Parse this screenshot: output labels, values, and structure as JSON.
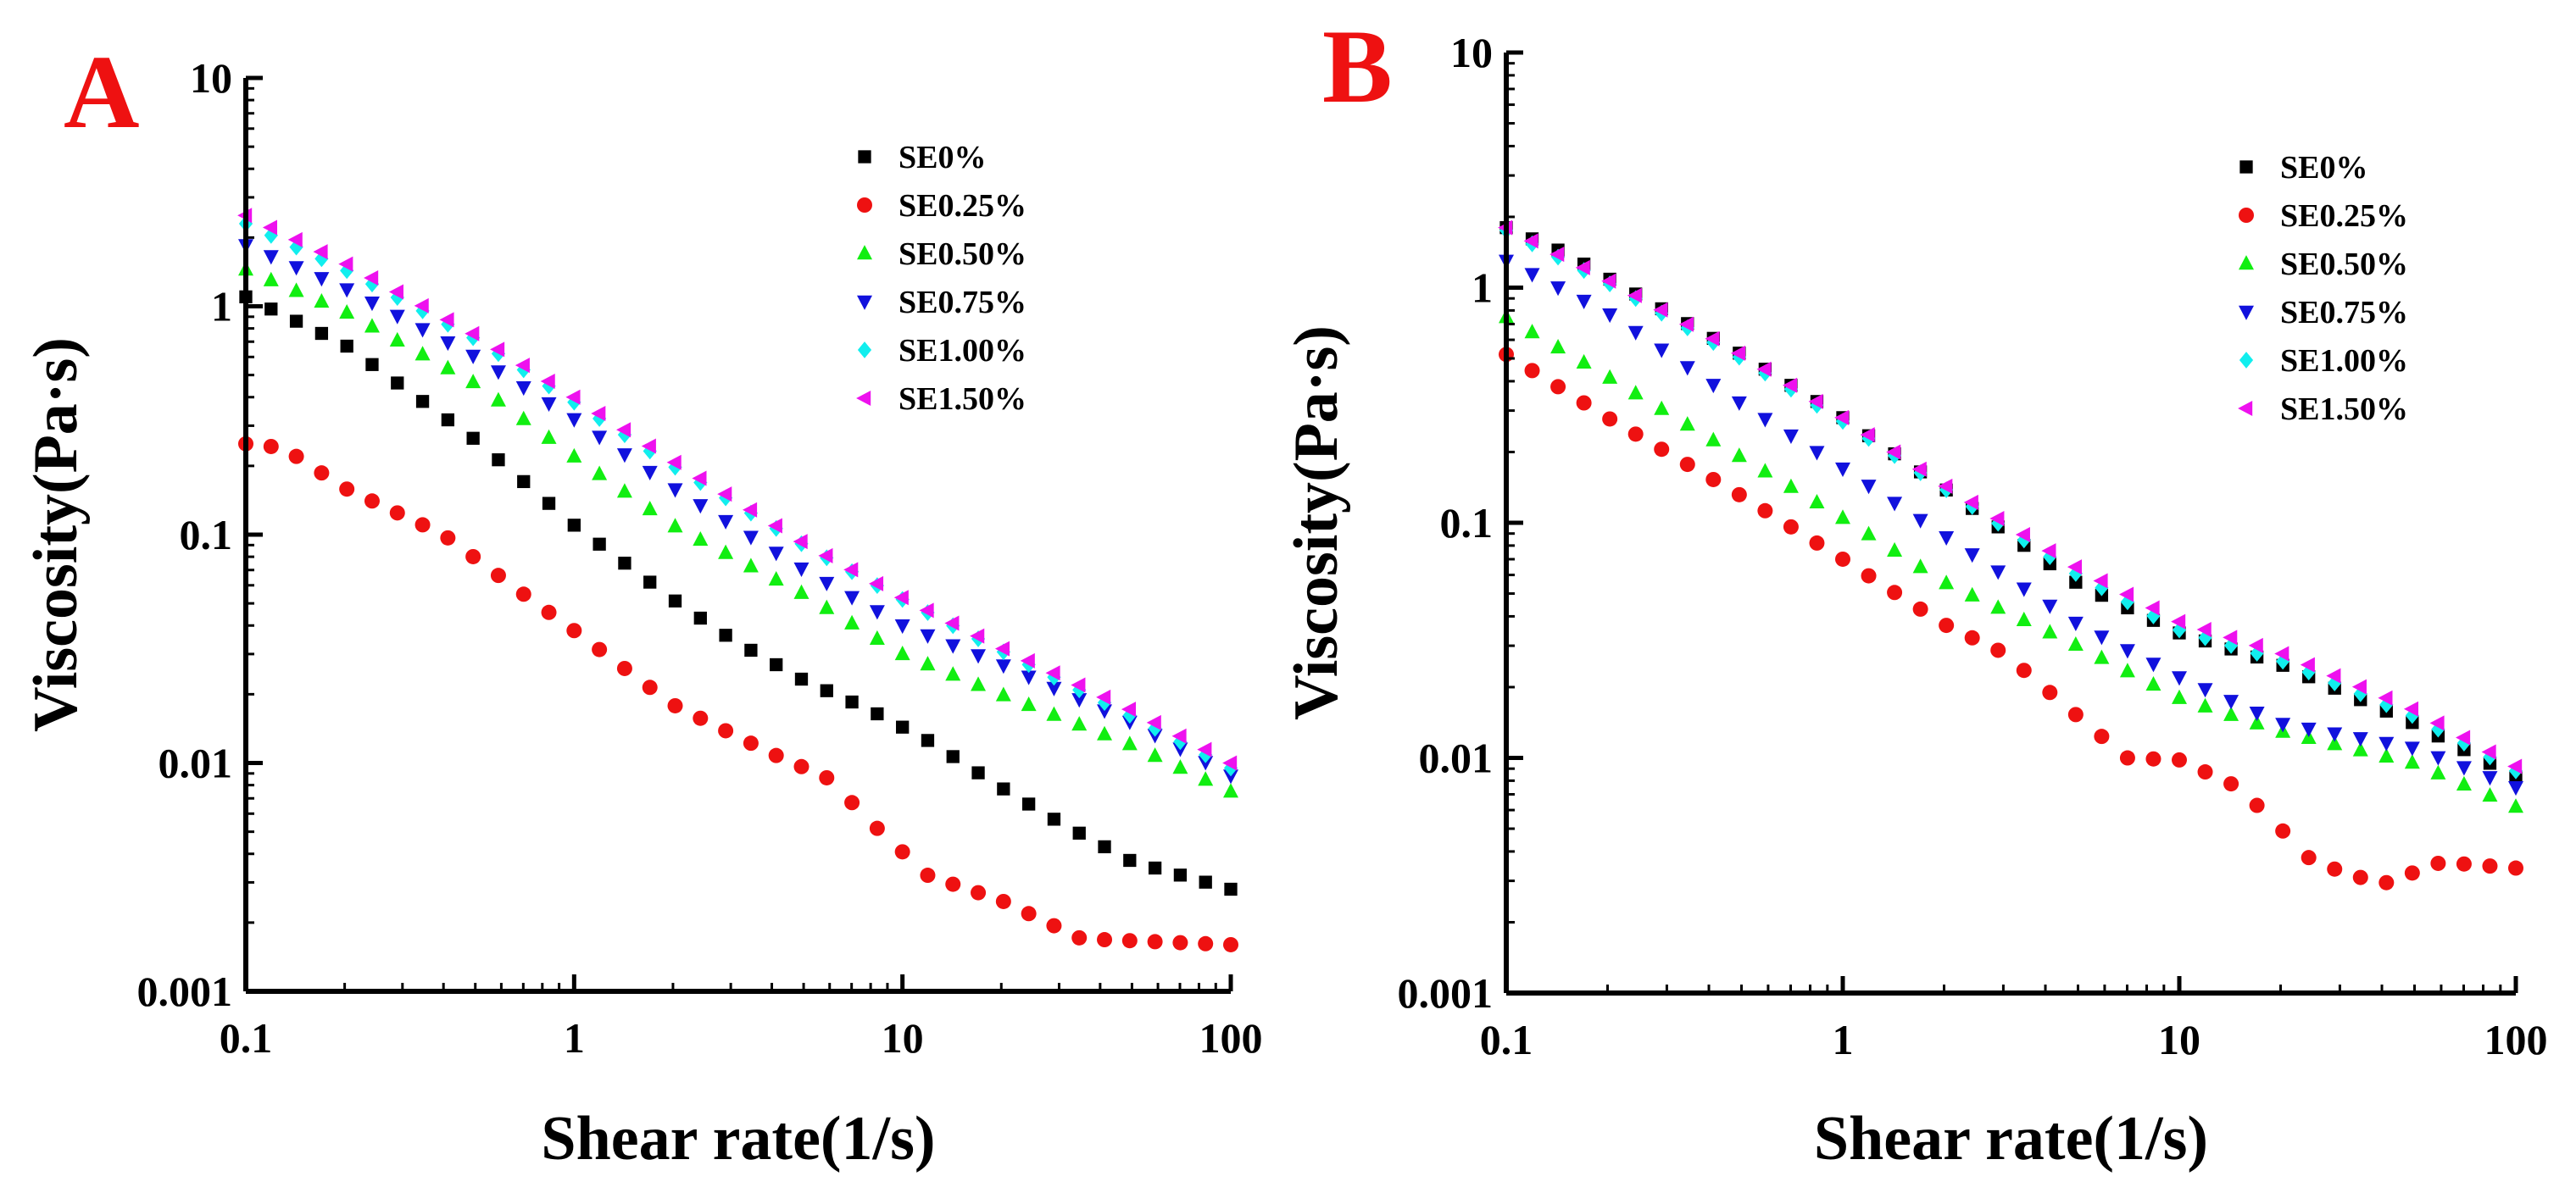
{
  "chart_data": [
    {
      "type": "scatter",
      "panel_label": "A",
      "panel_label_color": "#ee1111",
      "title": "",
      "xlabel": "Shear rate(1/s)",
      "ylabel": "Viscosity(Pa·s)",
      "xscale": "log",
      "yscale": "log",
      "xlim": [
        0.1,
        100
      ],
      "ylim": [
        0.001,
        10
      ],
      "xticks": [
        0.1,
        1,
        10,
        100
      ],
      "xtick_labels": [
        "0.1",
        "1",
        "10",
        "100"
      ],
      "yticks": [
        0.001,
        0.01,
        0.1,
        1,
        10
      ],
      "ytick_labels": [
        "0.001",
        "0.01",
        "0.1",
        "1",
        "10"
      ],
      "grid": false,
      "legend_position": "top-right",
      "series": [
        {
          "name": "SE0%",
          "color": "#000000",
          "marker": "square",
          "points": [
            [
              0.1,
              1.1
            ],
            [
              0.2,
              0.68
            ],
            [
              0.5,
              0.26
            ],
            [
              1,
              0.11
            ],
            [
              2,
              0.052
            ],
            [
              3,
              0.035
            ],
            [
              5,
              0.023
            ],
            [
              8,
              0.017
            ],
            [
              12,
              0.0125
            ],
            [
              20,
              0.0078
            ],
            [
              30,
              0.0055
            ],
            [
              50,
              0.0037
            ],
            [
              100,
              0.0028
            ]
          ]
        },
        {
          "name": "SE0.25%",
          "color": "#ee1111",
          "marker": "circle",
          "points": [
            [
              0.1,
              0.25
            ],
            [
              0.13,
              0.24
            ],
            [
              0.2,
              0.16
            ],
            [
              0.4,
              0.1
            ],
            [
              0.7,
              0.055
            ],
            [
              1,
              0.038
            ],
            [
              2,
              0.018
            ],
            [
              4,
              0.011
            ],
            [
              6,
              0.0085
            ],
            [
              8,
              0.0055
            ],
            [
              12,
              0.0032
            ],
            [
              20,
              0.0025
            ],
            [
              35,
              0.0017
            ],
            [
              100,
              0.0016
            ]
          ]
        },
        {
          "name": "SE0.50%",
          "color": "#11ee11",
          "marker": "triangle-up",
          "points": [
            [
              0.1,
              1.45
            ],
            [
              0.2,
              0.95
            ],
            [
              0.5,
              0.46
            ],
            [
              1,
              0.22
            ],
            [
              2,
              0.11
            ],
            [
              5,
              0.055
            ],
            [
              10,
              0.03
            ],
            [
              20,
              0.02
            ],
            [
              50,
              0.012
            ],
            [
              100,
              0.0075
            ]
          ]
        },
        {
          "name": "SE0.75%",
          "color": "#1111dd",
          "marker": "triangle-down",
          "points": [
            [
              0.1,
              1.85
            ],
            [
              0.2,
              1.2
            ],
            [
              0.5,
              0.6
            ],
            [
              1,
              0.32
            ],
            [
              2,
              0.16
            ],
            [
              5,
              0.07
            ],
            [
              10,
              0.04
            ],
            [
              20,
              0.027
            ],
            [
              50,
              0.015
            ],
            [
              100,
              0.0088
            ]
          ]
        },
        {
          "name": "SE1.00%",
          "color": "#11eeee",
          "marker": "diamond",
          "points": [
            [
              0.1,
              2.3
            ],
            [
              0.2,
              1.45
            ],
            [
              0.5,
              0.72
            ],
            [
              1,
              0.38
            ],
            [
              2,
              0.2
            ],
            [
              5,
              0.09
            ],
            [
              10,
              0.052
            ],
            [
              20,
              0.031
            ],
            [
              50,
              0.016
            ],
            [
              100,
              0.0095
            ]
          ]
        },
        {
          "name": "SE1.50%",
          "color": "#ee11ee",
          "marker": "triangle-left",
          "points": [
            [
              0.1,
              2.5
            ],
            [
              0.2,
              1.55
            ],
            [
              0.5,
              0.75
            ],
            [
              1,
              0.4
            ],
            [
              2,
              0.21
            ],
            [
              5,
              0.092
            ],
            [
              10,
              0.053
            ],
            [
              20,
              0.032
            ],
            [
              50,
              0.017
            ],
            [
              100,
              0.01
            ]
          ]
        }
      ]
    },
    {
      "type": "scatter",
      "panel_label": "B",
      "panel_label_color": "#ee1111",
      "title": "",
      "xlabel": "Shear rate(1/s)",
      "ylabel": "Viscosity(Pa·s)",
      "xscale": "log",
      "yscale": "log",
      "xlim": [
        0.1,
        100
      ],
      "ylim": [
        0.001,
        10
      ],
      "xticks": [
        0.1,
        1,
        10,
        100
      ],
      "xtick_labels": [
        "0.1",
        "1",
        "10",
        "100"
      ],
      "yticks": [
        0.001,
        0.01,
        0.1,
        1,
        10
      ],
      "ytick_labels": [
        "0.001",
        "0.01",
        "0.1",
        "1",
        "10"
      ],
      "grid": false,
      "legend_position": "top-right",
      "series": [
        {
          "name": "SE0%",
          "color": "#000000",
          "marker": "square",
          "points": [
            [
              0.1,
              1.8
            ],
            [
              0.15,
              1.4
            ],
            [
              0.2,
              1.1
            ],
            [
              0.5,
              0.52
            ],
            [
              1,
              0.28
            ],
            [
              2,
              0.14
            ],
            [
              5,
              0.055
            ],
            [
              10,
              0.034
            ],
            [
              20,
              0.025
            ],
            [
              50,
              0.014
            ],
            [
              100,
              0.0083
            ]
          ]
        },
        {
          "name": "SE0.25%",
          "color": "#ee1111",
          "marker": "circle",
          "points": [
            [
              0.1,
              0.52
            ],
            [
              0.2,
              0.28
            ],
            [
              0.5,
              0.13
            ],
            [
              1,
              0.07
            ],
            [
              2,
              0.037
            ],
            [
              3,
              0.028
            ],
            [
              5,
              0.015
            ],
            [
              7,
              0.01
            ],
            [
              10,
              0.0098
            ],
            [
              15,
              0.0075
            ],
            [
              20,
              0.005
            ],
            [
              25,
              0.0036
            ],
            [
              40,
              0.0029
            ],
            [
              60,
              0.0036
            ],
            [
              100,
              0.0034
            ]
          ]
        },
        {
          "name": "SE0.50%",
          "color": "#11ee11",
          "marker": "triangle-up",
          "points": [
            [
              0.1,
              0.75
            ],
            [
              0.2,
              0.42
            ],
            [
              0.5,
              0.19
            ],
            [
              1,
              0.105
            ],
            [
              2,
              0.056
            ],
            [
              5,
              0.03
            ],
            [
              10,
              0.018
            ],
            [
              20,
              0.013
            ],
            [
              50,
              0.0095
            ],
            [
              100,
              0.0062
            ]
          ]
        },
        {
          "name": "SE0.75%",
          "color": "#1111dd",
          "marker": "triangle-down",
          "points": [
            [
              0.1,
              1.3
            ],
            [
              0.2,
              0.78
            ],
            [
              0.5,
              0.32
            ],
            [
              1,
              0.17
            ],
            [
              2,
              0.088
            ],
            [
              5,
              0.037
            ],
            [
              10,
              0.022
            ],
            [
              20,
              0.014
            ],
            [
              50,
              0.011
            ],
            [
              100,
              0.0075
            ]
          ]
        },
        {
          "name": "SE1.00%",
          "color": "#11eeee",
          "marker": "diamond",
          "points": [
            [
              0.1,
              1.75
            ],
            [
              0.2,
              1.05
            ],
            [
              0.5,
              0.5
            ],
            [
              1,
              0.27
            ],
            [
              2,
              0.14
            ],
            [
              5,
              0.06
            ],
            [
              10,
              0.035
            ],
            [
              20,
              0.026
            ],
            [
              50,
              0.015
            ],
            [
              100,
              0.0088
            ]
          ]
        },
        {
          "name": "SE1.50%",
          "color": "#ee11ee",
          "marker": "triangle-left",
          "points": [
            [
              0.1,
              1.8
            ],
            [
              0.2,
              1.08
            ],
            [
              0.5,
              0.52
            ],
            [
              1,
              0.28
            ],
            [
              2,
              0.145
            ],
            [
              5,
              0.064
            ],
            [
              10,
              0.038
            ],
            [
              20,
              0.028
            ],
            [
              50,
              0.016
            ],
            [
              100,
              0.0092
            ]
          ]
        }
      ]
    }
  ]
}
